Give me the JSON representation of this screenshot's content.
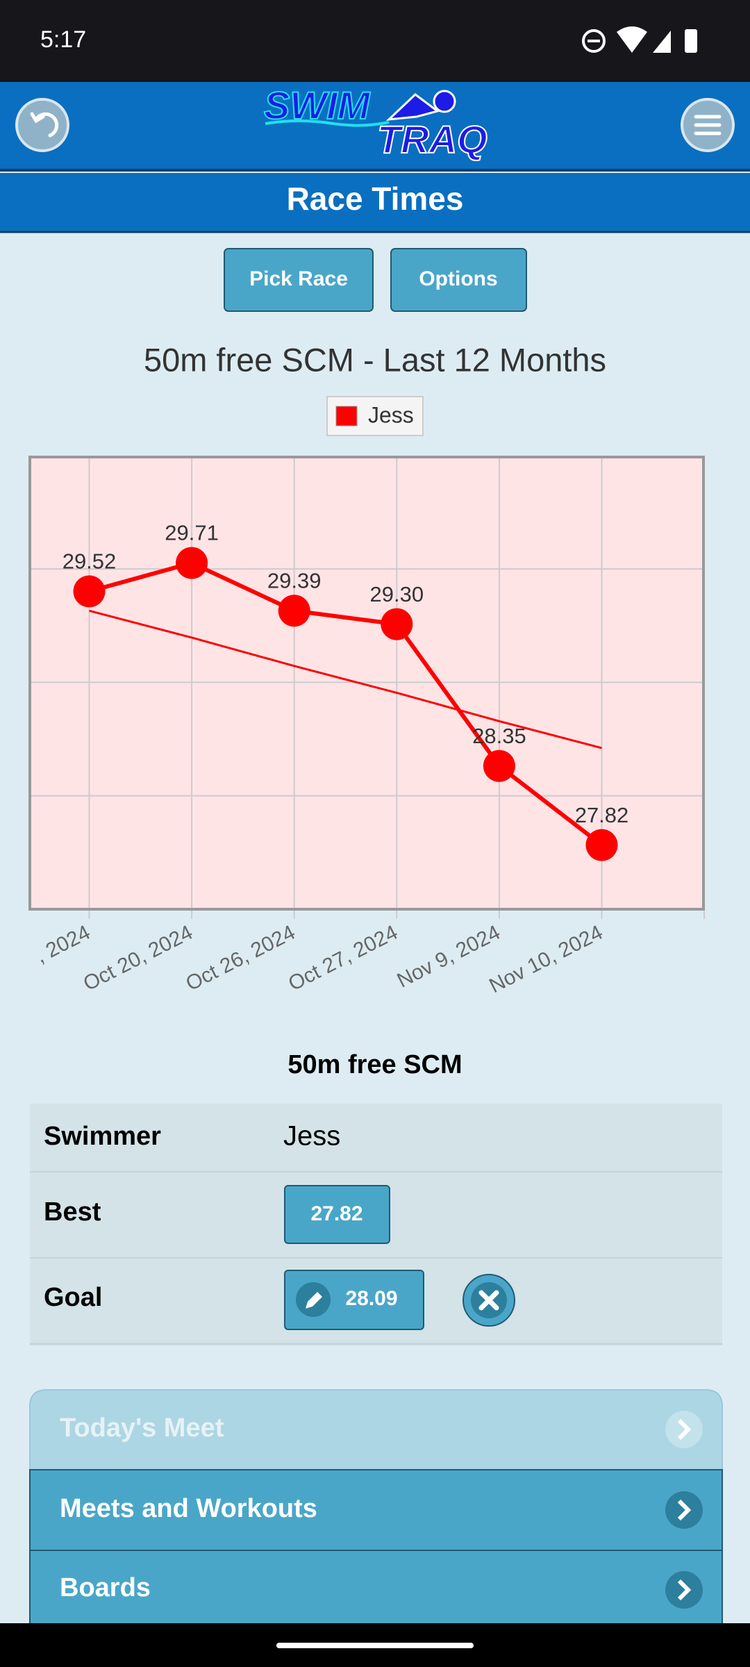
{
  "status_bar": {
    "time": "5:17"
  },
  "header": {
    "logo_top": "SWIM",
    "logo_bottom": "TRAQ",
    "title": "Race Times"
  },
  "buttons": [
    "Pick Race",
    "Options"
  ],
  "chart_data": {
    "type": "line",
    "title": "50m free SCM - Last 12 Months",
    "categories": [
      ", 2024",
      "Oct 20, 2024",
      "Oct 26, 2024",
      "Oct 27, 2024",
      "Nov 9, 2024",
      "Nov 10, 2024"
    ],
    "series": [
      {
        "name": "Jess",
        "color": "#ff0000",
        "values": [
          29.52,
          29.71,
          29.39,
          29.3,
          28.35,
          27.82
        ],
        "value_labels": [
          "29.52",
          "29.71",
          "29.39",
          "29.30",
          "28.35",
          "27.82"
        ]
      }
    ],
    "trend": {
      "color": "#ff0000",
      "values": [
        29.39,
        29.21,
        29.02,
        28.84,
        28.65,
        28.47
      ]
    },
    "ylim": [
      27.39,
      30.42
    ],
    "yticks": [
      28.15,
      28.91,
      29.67
    ],
    "grid": true,
    "plot_background": "#ffe4e6"
  },
  "summary": {
    "title": "50m free SCM",
    "rows": [
      [
        "Swimmer",
        "Jess"
      ],
      [
        "Best",
        "27.82"
      ],
      [
        "Goal",
        "28.09"
      ]
    ]
  },
  "menu": [
    "Today's Meet",
    "Meets and Workouts",
    "Boards"
  ]
}
